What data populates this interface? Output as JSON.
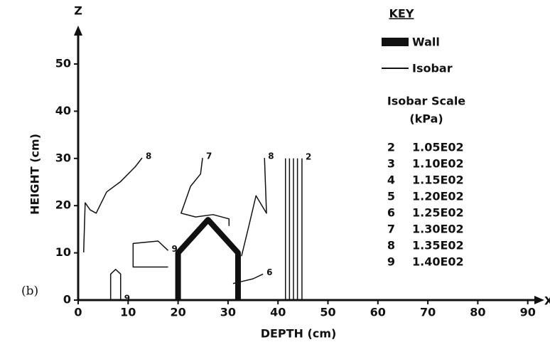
{
  "chart_data": {
    "type": "contour",
    "panel_label": "(b)",
    "x_axis_name": "X",
    "y_axis_name": "Z",
    "xlabel": "DEPTH (cm)",
    "ylabel": "HEIGHT (cm)",
    "xlim": [
      0,
      93
    ],
    "ylim": [
      0,
      57
    ],
    "xticks": [
      0,
      10,
      20,
      30,
      40,
      50,
      60,
      70,
      80,
      90
    ],
    "yticks": [
      0,
      10,
      20,
      30,
      40,
      50
    ],
    "wall": {
      "x": [
        20,
        20,
        26,
        32,
        32
      ],
      "y": [
        0,
        10,
        17,
        10,
        0
      ]
    },
    "contours": [
      {
        "label": "8",
        "x": [
          1.1,
          1.4,
          2.4,
          3.6,
          5.7,
          8.5,
          11.4,
          12.8
        ],
        "y": [
          10.1,
          20.6,
          19.1,
          18.4,
          22.9,
          25.1,
          28.2,
          30.1
        ]
      },
      {
        "label": "7",
        "x": [
          30.2,
          30.2,
          27,
          23.5,
          20.6,
          22.5,
          24.5,
          24.9
        ],
        "y": [
          15.7,
          17.2,
          18.1,
          17.6,
          18.4,
          24.1,
          26.7,
          30.1
        ]
      },
      {
        "label": "8",
        "x": [
          32.7,
          34.1,
          35.6,
          37.7,
          37.3
        ],
        "y": [
          9.3,
          15.4,
          22.1,
          18.4,
          30.1
        ]
      },
      {
        "x": [
          41.5,
          41.5
        ],
        "y": [
          0,
          30
        ]
      },
      {
        "x": [
          42.3,
          42.3
        ],
        "y": [
          0,
          30
        ]
      },
      {
        "x": [
          43.1,
          43.1
        ],
        "y": [
          0,
          30
        ]
      },
      {
        "x": [
          43.9,
          43.9
        ],
        "y": [
          0,
          30
        ]
      },
      {
        "label": "2",
        "x": [
          44.8,
          44.8
        ],
        "y": [
          0,
          30
        ]
      },
      {
        "label": "9",
        "x": [
          6.5,
          6.5,
          7.5,
          8.5,
          8.5
        ],
        "y": [
          0,
          5.5,
          6.5,
          5.5,
          0
        ]
      },
      {
        "label": "9",
        "x": [
          18,
          11,
          11,
          16,
          18
        ],
        "y": [
          7,
          7,
          12,
          12.5,
          10.5
        ]
      },
      {
        "label": "6",
        "x": [
          31,
          33,
          35,
          37
        ],
        "y": [
          3.5,
          4,
          4.5,
          5.5
        ]
      }
    ],
    "key": {
      "title": "KEY",
      "wall": "Wall",
      "isobar": "Isobar",
      "scale_title": "Isobar Scale",
      "unit": "(kPa)",
      "scale": [
        {
          "level": "2",
          "pressure": "1.05E02"
        },
        {
          "level": "3",
          "pressure": "1.10E02"
        },
        {
          "level": "4",
          "pressure": "1.15E02"
        },
        {
          "level": "5",
          "pressure": "1.20E02"
        },
        {
          "level": "6",
          "pressure": "1.25E02"
        },
        {
          "level": "7",
          "pressure": "1.30E02"
        },
        {
          "level": "8",
          "pressure": "1.35E02"
        },
        {
          "level": "9",
          "pressure": "1.40E02"
        }
      ]
    }
  }
}
